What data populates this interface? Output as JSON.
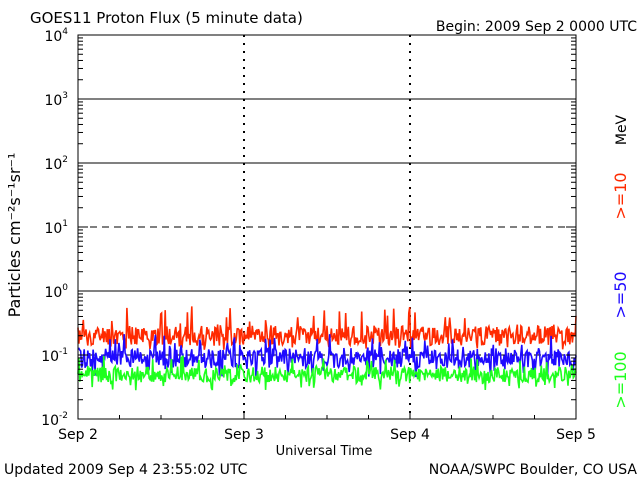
{
  "chart_data": {
    "type": "line",
    "title": "GOES11 Proton Flux (5 minute data)",
    "begin_label": "Begin: 2009 Sep 2 0000 UTC",
    "xlabel": "Universal Time",
    "ylabel": "Particles cm⁻²s⁻¹sr⁻¹",
    "y_scale": "log",
    "ylim": [
      0.01,
      10000
    ],
    "y_ticks": [
      {
        "value": 0.01,
        "base": "10",
        "exp": "-2"
      },
      {
        "value": 0.1,
        "base": "10",
        "exp": "-1"
      },
      {
        "value": 1,
        "base": "10",
        "exp": "0"
      },
      {
        "value": 10,
        "base": "10",
        "exp": "1"
      },
      {
        "value": 100,
        "base": "10",
        "exp": "2"
      },
      {
        "value": 1000,
        "base": "10",
        "exp": "3"
      },
      {
        "value": 10000,
        "base": "10",
        "exp": "4"
      }
    ],
    "x_ticks": [
      {
        "value": 0,
        "label": "Sep 2"
      },
      {
        "value": 1,
        "label": "Sep 3"
      },
      {
        "value": 2,
        "label": "Sep 4"
      },
      {
        "value": 3,
        "label": "Sep 5"
      }
    ],
    "xlim": [
      0,
      3
    ],
    "unit_label": "MeV",
    "series": [
      {
        "name": ">=10",
        "color": "#ff2a00",
        "typical": 0.2,
        "low": 0.12,
        "high": 0.6,
        "seed": 11
      },
      {
        "name": ">=50",
        "color": "#1e0aff",
        "typical": 0.09,
        "low": 0.045,
        "high": 0.22,
        "seed": 29
      },
      {
        "name": ">=100",
        "color": "#1eff1e",
        "typical": 0.05,
        "low": 0.028,
        "high": 0.1,
        "seed": 47
      }
    ],
    "reference_lines": [
      {
        "value": 1,
        "style": "solid"
      },
      {
        "value": 10,
        "style": "dashed"
      },
      {
        "value": 100,
        "style": "solid"
      },
      {
        "value": 1000,
        "style": "solid"
      },
      {
        "value": 0.1,
        "style": "dashed"
      }
    ]
  },
  "footer": {
    "updated": "Updated 2009 Sep  4 23:55:02 UTC",
    "credit": "NOAA/SWPC Boulder, CO USA"
  }
}
